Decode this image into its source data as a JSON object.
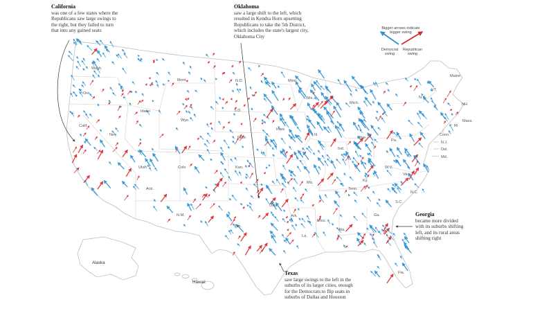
{
  "legend": {
    "size_note_line1": "Bigger arrows indicate",
    "size_note_line2": "bigger swing",
    "democrat_line1": "Democrat",
    "democrat_line2": "swing",
    "republican_line1": "Republican",
    "republican_line2": "swing",
    "democrat_color": "#2b8fd0",
    "republican_color": "#d7262d"
  },
  "annotations": {
    "california": {
      "title": "California",
      "lines": [
        "was one of a few states where the",
        "Republicans saw large swings to",
        "the right, but they failed to turn",
        "that into any gained seats"
      ]
    },
    "oklahoma": {
      "title": "Oklahoma",
      "lines": [
        "saw a large shift to the left, which",
        "resulted in Kendra Horn upsetting",
        "Republicans to take the 5th District,",
        "which includes the state's largest city,",
        "Oklahoma City"
      ]
    },
    "georgia": {
      "title": "Georgia",
      "lines": [
        "became more divided",
        "with its suburbs shifting",
        "left, and its rural areas",
        "shifting right"
      ]
    },
    "texas": {
      "title": "Texas",
      "lines": [
        "saw large swings to the left in the",
        "suburbs of its larger cities, enough",
        "for the Democrats to flip seats in",
        "suburbs of Dallas and Houston"
      ]
    }
  },
  "state_labels": {
    "wash": "Wash.",
    "ore": "Ore.",
    "calif": "Calif.",
    "nev": "Nev.",
    "idaho": "Idaho",
    "mont": "Mont.",
    "wyo": "Wyo.",
    "utah": "Utah",
    "ariz": "Ariz.",
    "colo": "Colo",
    "nm": "N.M.",
    "nd": "N.D.",
    "sd": "S.D.",
    "nebr": "Nebr.",
    "kan": "Kan.",
    "okla": "Okla.",
    "tex": "Tex.",
    "minn": "Minn.",
    "iowa": "Iowa",
    "mo": "Mo.",
    "ark": "Ark.",
    "la": "La.",
    "wis": "Wis.",
    "ill": "Ill.",
    "mich": "Mich.",
    "ind": "Ind.",
    "ohio": "Ohio",
    "ky": "Ky.",
    "tenn": "Tenn.",
    "miss": "Miss.",
    "ala": "Ala.",
    "ga": "Ga.",
    "fla": "Fla.",
    "sc": "S.C.",
    "nc": "N.C.",
    "va": "Va.",
    "wv": "W.V.",
    "pa": "Pa.",
    "ny": "N.Y.",
    "vt": "VT.",
    "maine": "Maine",
    "nh": "NH",
    "mass": "Mass.",
    "ri": "RI",
    "conn": "Conn.",
    "nj": "N.J.",
    "del": "Del.",
    "md": "Md.",
    "alaska": "Alaska",
    "hawaii": "Hawaii"
  }
}
